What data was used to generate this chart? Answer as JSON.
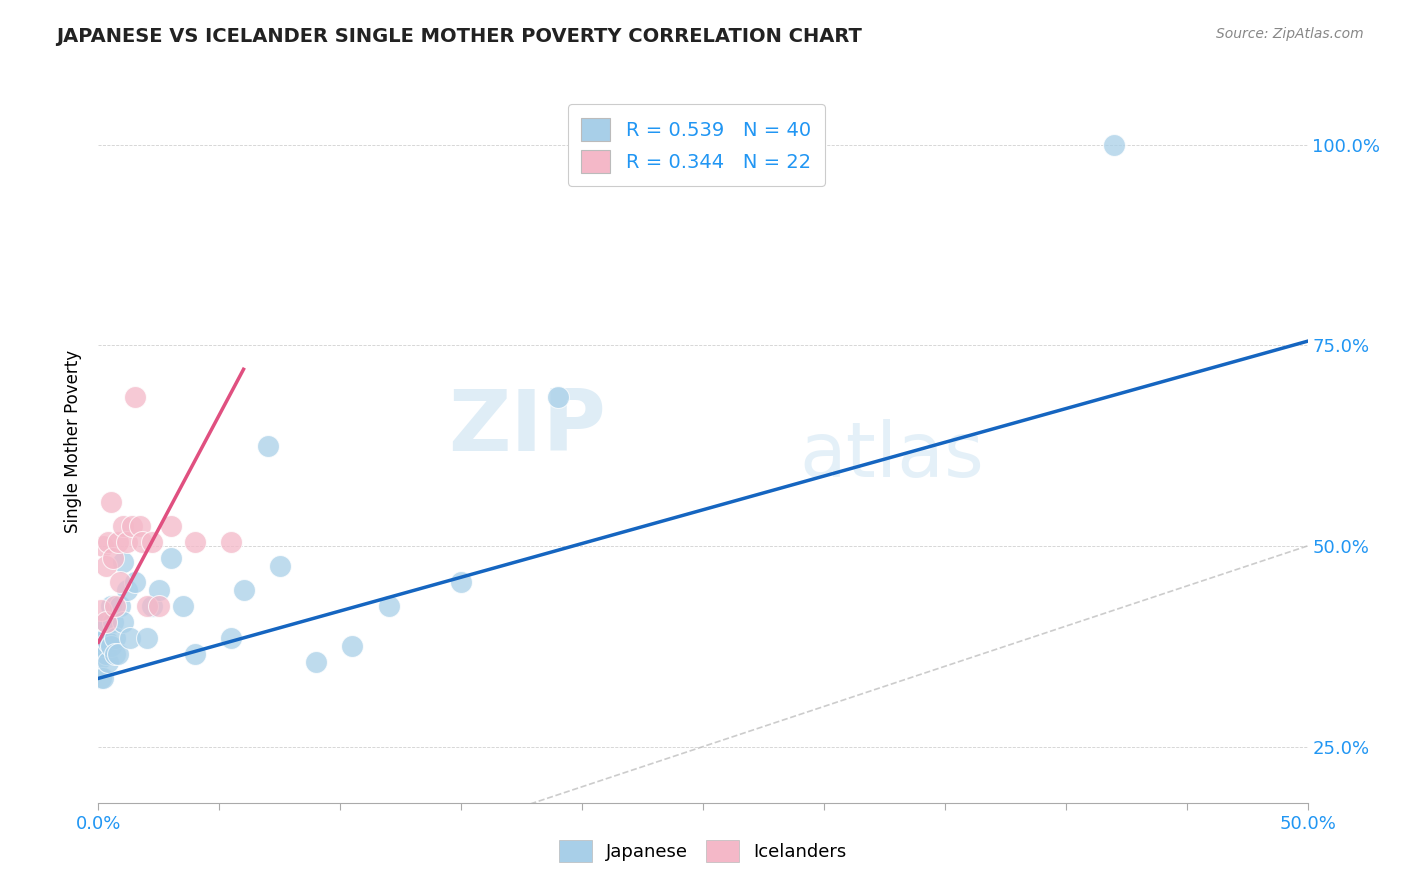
{
  "title": "JAPANESE VS ICELANDER SINGLE MOTHER POVERTY CORRELATION CHART",
  "source": "Source: ZipAtlas.com",
  "ylabel": "Single Mother Poverty",
  "legend_japanese": "Japanese",
  "legend_icelanders": "Icelanders",
  "R_japanese": 0.539,
  "N_japanese": 40,
  "R_icelanders": 0.344,
  "N_icelanders": 22,
  "watermark_zip": "ZIP",
  "watermark_atlas": "atlas",
  "color_japanese": "#a8cfe8",
  "color_icelanders": "#f4b8c8",
  "color_trendline_japanese": "#1565c0",
  "color_trendline_icelanders": "#e05080",
  "color_refline": "#cccccc",
  "ytick_labels": [
    "25.0%",
    "50.0%",
    "75.0%",
    "100.0%"
  ],
  "ytick_values": [
    0.25,
    0.5,
    0.75,
    1.0
  ],
  "xlim": [
    0.0,
    0.5
  ],
  "ylim": [
    0.18,
    1.08
  ],
  "japanese_x": [
    0.001,
    0.001,
    0.001,
    0.002,
    0.002,
    0.002,
    0.002,
    0.003,
    0.003,
    0.003,
    0.004,
    0.004,
    0.005,
    0.005,
    0.006,
    0.007,
    0.007,
    0.008,
    0.009,
    0.01,
    0.01,
    0.012,
    0.013,
    0.015,
    0.02,
    0.022,
    0.025,
    0.03,
    0.035,
    0.04,
    0.055,
    0.06,
    0.07,
    0.075,
    0.09,
    0.105,
    0.12,
    0.15,
    0.19,
    0.42
  ],
  "japanese_y": [
    0.335,
    0.36,
    0.375,
    0.335,
    0.38,
    0.4,
    0.375,
    0.365,
    0.385,
    0.405,
    0.38,
    0.355,
    0.375,
    0.425,
    0.405,
    0.385,
    0.365,
    0.365,
    0.425,
    0.405,
    0.48,
    0.445,
    0.385,
    0.455,
    0.385,
    0.425,
    0.445,
    0.485,
    0.425,
    0.365,
    0.385,
    0.445,
    0.625,
    0.475,
    0.355,
    0.375,
    0.425,
    0.455,
    0.685,
    1.0
  ],
  "icelanders_x": [
    0.001,
    0.002,
    0.003,
    0.003,
    0.004,
    0.005,
    0.006,
    0.007,
    0.008,
    0.009,
    0.01,
    0.012,
    0.014,
    0.015,
    0.017,
    0.018,
    0.02,
    0.022,
    0.025,
    0.03,
    0.04,
    0.055
  ],
  "icelanders_y": [
    0.42,
    0.5,
    0.475,
    0.405,
    0.505,
    0.555,
    0.485,
    0.425,
    0.505,
    0.455,
    0.525,
    0.505,
    0.525,
    0.685,
    0.525,
    0.505,
    0.425,
    0.505,
    0.425,
    0.525,
    0.505,
    0.505
  ],
  "japanese_trend": [
    0.0,
    0.5,
    0.335,
    0.755
  ],
  "icelanders_trend": [
    0.0,
    0.06,
    0.38,
    0.72
  ],
  "ref_line": [
    0.0,
    0.5,
    0.0,
    0.5
  ]
}
